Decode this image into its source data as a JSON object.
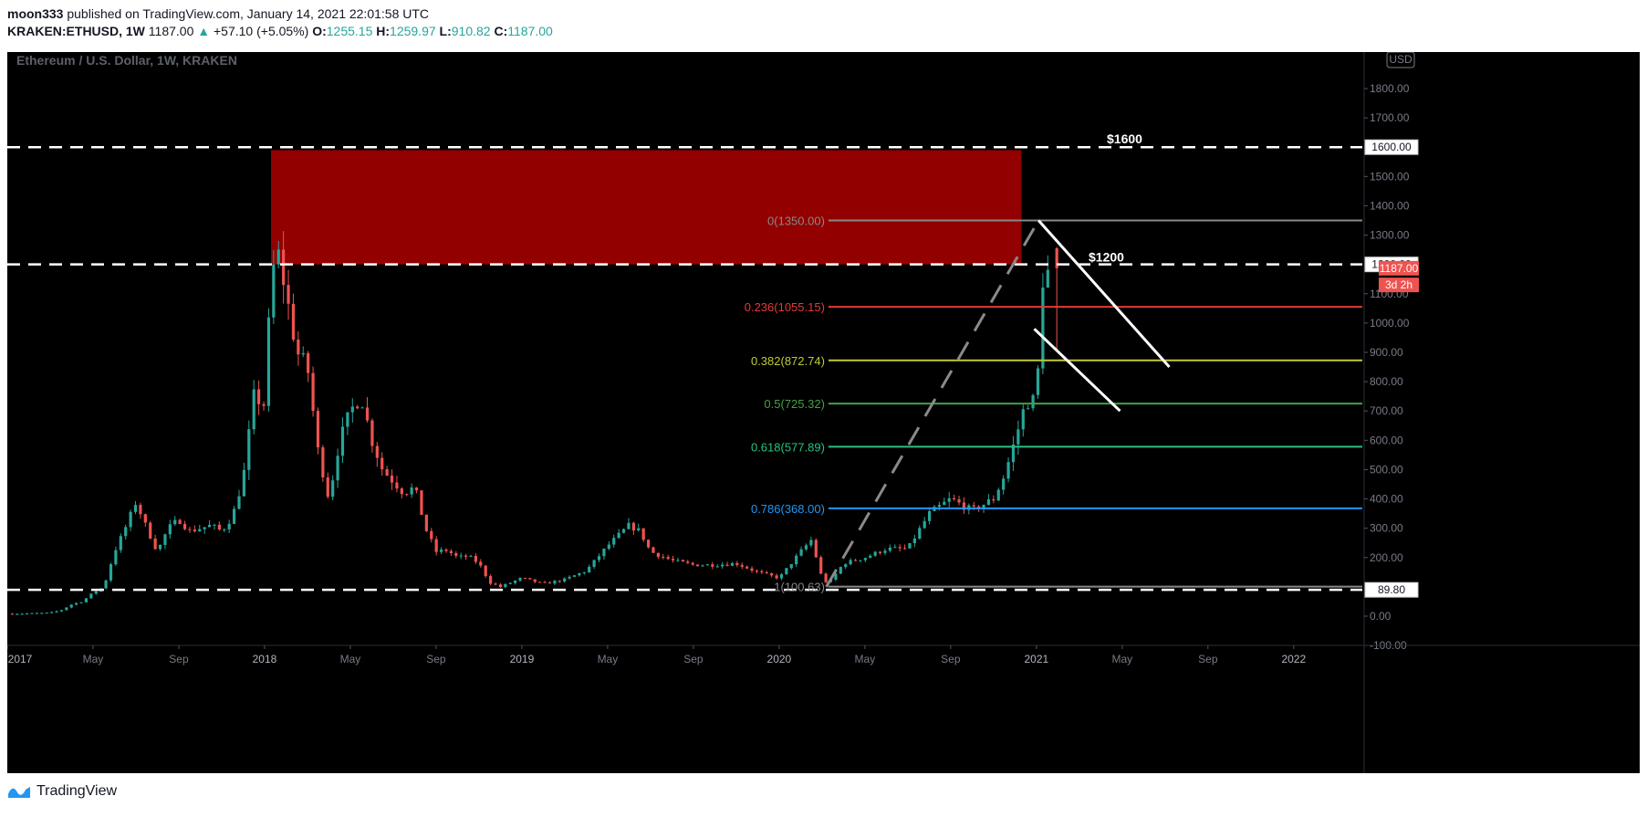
{
  "header": {
    "author": "moon333",
    "published_text": "published on TradingView.com, January 14, 2021 22:01:58 UTC",
    "symbol": "KRAKEN:ETHUSD, 1W",
    "last": "1187.00",
    "change": "+57.10 (+5.05%)",
    "o_label": "O:",
    "o": "1255.15",
    "h_label": "H:",
    "h": "1259.97",
    "l_label": "L:",
    "l": "910.82",
    "c_label": "C:",
    "c": "1187.00"
  },
  "footer": {
    "brand": "TradingView"
  },
  "colors": {
    "up": "#26a69a",
    "down": "#ef5350",
    "zone": "#9a0000",
    "fib0": "#888888",
    "fib236": "#e53935",
    "fib382": "#c0ca33",
    "fib5": "#43a047",
    "fib618": "#26c281",
    "fib786": "#2196f3",
    "fib1": "#888888"
  },
  "chart_data": {
    "type": "candlestick",
    "title": "Ethereum / U.S. Dollar, 1W, KRAKEN",
    "currency": "USD",
    "y_ticks": [
      1800,
      1700,
      1600,
      1500,
      1400,
      1300,
      1200,
      1100,
      1000,
      900,
      800,
      700,
      600,
      500,
      400,
      300,
      200,
      100,
      0,
      -100
    ],
    "y_tick_labels": [
      "1800.00",
      "1700.00",
      "1600.00",
      "1500.00",
      "1400.00",
      "1300.00",
      "1200.00",
      "1100.00",
      "1000.00",
      "900.00",
      "800.00",
      "700.00",
      "600.00",
      "500.00",
      "400.00",
      "300.00",
      "200.00",
      "100.00",
      "0.00",
      "-100.00"
    ],
    "ylim": [
      -200,
      1860
    ],
    "x_labels": [
      "2017",
      "May",
      "Sep",
      "2018",
      "May",
      "Sep",
      "2019",
      "May",
      "Sep",
      "2020",
      "May",
      "Sep",
      "2021",
      "May",
      "Sep",
      "2022"
    ],
    "x_label_months": [
      0,
      4,
      8,
      12,
      16,
      20,
      24,
      28,
      32,
      36,
      40,
      44,
      48,
      52,
      56,
      60
    ],
    "xlim_months": [
      0,
      63.2
    ],
    "price_badges": [
      {
        "value": 1600,
        "label": "1600.00",
        "style": "outline"
      },
      {
        "value": 1200,
        "label": "1200.00",
        "style": "outline"
      },
      {
        "value": 1187,
        "label": "1187.00",
        "style": "red"
      },
      {
        "value": 1130,
        "label": "3d 2h",
        "style": "red"
      },
      {
        "value": 89.8,
        "label": "89.80",
        "style": "outline"
      }
    ],
    "horizontal_lines": [
      {
        "value": 1600,
        "label": "$1600"
      },
      {
        "value": 1200,
        "label": "$1200"
      },
      {
        "value": 89.8,
        "label": ""
      }
    ],
    "resistance_zone": {
      "x_start_month": 12.3,
      "x_end_month": 47.3,
      "y_low": 1200,
      "y_high": 1590
    },
    "fib_levels": [
      {
        "ratio": "0",
        "value": 1350.0,
        "label": "0(1350.00)",
        "color_key": "fib0"
      },
      {
        "ratio": "0.236",
        "value": 1055.15,
        "label": "0.236(1055.15)",
        "color_key": "fib236"
      },
      {
        "ratio": "0.382",
        "value": 872.74,
        "label": "0.382(872.74)",
        "color_key": "fib382"
      },
      {
        "ratio": "0.5",
        "value": 725.32,
        "label": "0.5(725.32)",
        "color_key": "fib5"
      },
      {
        "ratio": "0.618",
        "value": 577.89,
        "label": "0.618(577.89)",
        "color_key": "fib618"
      },
      {
        "ratio": "0.786",
        "value": 368.0,
        "label": "0.786(368.00)",
        "color_key": "fib786"
      },
      {
        "ratio": "1",
        "value": 100.63,
        "label": "1(100.63)",
        "color_key": "fib1"
      }
    ],
    "fib_x_start_month": 38.3,
    "trend_lines": [
      {
        "from": [
          38.2,
          100
        ],
        "to": [
          48.1,
          1350
        ],
        "style": "dashed"
      },
      {
        "from": [
          48.1,
          1350
        ],
        "to": [
          54.2,
          850
        ],
        "style": "solid"
      },
      {
        "from": [
          47.9,
          980
        ],
        "to": [
          51.9,
          700
        ],
        "style": "solid"
      }
    ],
    "price_path": [
      [
        0,
        8
      ],
      [
        1,
        9
      ],
      [
        2,
        11
      ],
      [
        2.5,
        20
      ],
      [
        3,
        40
      ],
      [
        3.5,
        50
      ],
      [
        4,
        80
      ],
      [
        4.5,
        100
      ],
      [
        5,
        220
      ],
      [
        5.5,
        300
      ],
      [
        6,
        390
      ],
      [
        6.5,
        300
      ],
      [
        7,
        220
      ],
      [
        7.5,
        300
      ],
      [
        8,
        330
      ],
      [
        8.5,
        290
      ],
      [
        9,
        300
      ],
      [
        9.5,
        310
      ],
      [
        10,
        290
      ],
      [
        10.5,
        340
      ],
      [
        11,
        470
      ],
      [
        11.5,
        750
      ],
      [
        12,
        720
      ],
      [
        12.3,
        1150
      ],
      [
        12.6,
        1250
      ],
      [
        13,
        1100
      ],
      [
        13.5,
        900
      ],
      [
        14,
        850
      ],
      [
        14.5,
        560
      ],
      [
        15,
        400
      ],
      [
        15.5,
        600
      ],
      [
        16,
        700
      ],
      [
        16.5,
        750
      ],
      [
        17,
        600
      ],
      [
        17.5,
        500
      ],
      [
        18,
        460
      ],
      [
        18.5,
        420
      ],
      [
        19,
        440
      ],
      [
        19.5,
        300
      ],
      [
        20,
        220
      ],
      [
        20.5,
        225
      ],
      [
        21,
        200
      ],
      [
        21.5,
        205
      ],
      [
        22,
        180
      ],
      [
        22.5,
        115
      ],
      [
        23,
        100
      ],
      [
        24,
        130
      ],
      [
        25,
        110
      ],
      [
        26,
        125
      ],
      [
        27,
        155
      ],
      [
        28,
        240
      ],
      [
        29,
        310
      ],
      [
        29.5,
        290
      ],
      [
        30,
        220
      ],
      [
        31,
        190
      ],
      [
        32,
        175
      ],
      [
        33,
        175
      ],
      [
        34,
        180
      ],
      [
        35,
        150
      ],
      [
        36,
        130
      ],
      [
        37,
        220
      ],
      [
        37.5,
        260
      ],
      [
        38,
        130
      ],
      [
        38.3,
        110
      ],
      [
        39,
        180
      ],
      [
        40,
        200
      ],
      [
        41,
        230
      ],
      [
        42,
        230
      ],
      [
        43,
        350
      ],
      [
        44,
        400
      ],
      [
        45,
        360
      ],
      [
        46,
        400
      ],
      [
        46.5,
        480
      ],
      [
        47,
        600
      ],
      [
        47.5,
        730
      ],
      [
        48,
        740
      ],
      [
        48.3,
        1150
      ],
      [
        48.7,
        1187
      ]
    ]
  }
}
